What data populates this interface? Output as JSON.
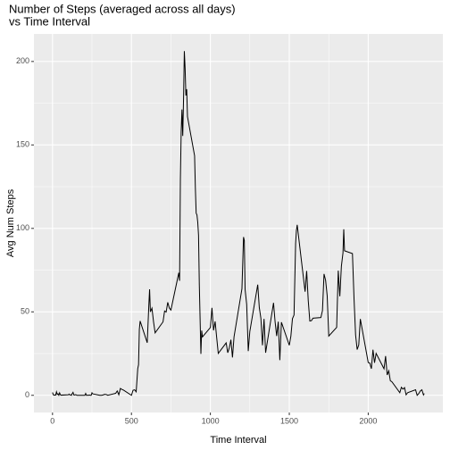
{
  "chart_data": {
    "type": "line",
    "title": [
      "Number of Steps (averaged across all days)",
      "vs Time Interval"
    ],
    "x_label": "Time Interval",
    "y_label": "Avg Num Steps",
    "color": "#000000",
    "grid": true,
    "xlim": [
      -117.75,
      2472.75
    ],
    "xticks": [
      0,
      500,
      1000,
      1500,
      2000
    ],
    "ylim": [
      -10.3,
      216.5
    ],
    "yticks": [
      0,
      50,
      100,
      150,
      200
    ],
    "x": [
      0,
      5,
      10,
      15,
      20,
      25,
      30,
      35,
      40,
      45,
      50,
      55,
      100,
      105,
      110,
      115,
      120,
      125,
      130,
      135,
      140,
      145,
      150,
      155,
      200,
      205,
      210,
      215,
      220,
      225,
      230,
      235,
      240,
      245,
      250,
      255,
      300,
      310,
      320,
      330,
      340,
      350,
      400,
      410,
      420,
      430,
      440,
      450,
      500,
      510,
      520,
      530,
      540,
      545,
      550,
      555,
      600,
      610,
      615,
      620,
      630,
      640,
      650,
      700,
      710,
      720,
      730,
      740,
      750,
      800,
      805,
      810,
      815,
      820,
      825,
      830,
      835,
      840,
      845,
      850,
      855,
      900,
      905,
      910,
      915,
      920,
      925,
      930,
      935,
      940,
      945,
      950,
      1000,
      1010,
      1020,
      1030,
      1040,
      1050,
      1100,
      1110,
      1120,
      1130,
      1140,
      1150,
      1200,
      1210,
      1215,
      1220,
      1230,
      1240,
      1250,
      1300,
      1310,
      1320,
      1330,
      1340,
      1350,
      1400,
      1410,
      1420,
      1430,
      1440,
      1450,
      1500,
      1510,
      1520,
      1530,
      1540,
      1545,
      1550,
      1600,
      1610,
      1620,
      1630,
      1640,
      1650,
      1700,
      1710,
      1720,
      1730,
      1740,
      1750,
      1800,
      1810,
      1820,
      1830,
      1840,
      1845,
      1850,
      1900,
      1910,
      1920,
      1930,
      1940,
      1950,
      2000,
      2010,
      2020,
      2030,
      2040,
      2050,
      2100,
      2110,
      2120,
      2130,
      2140,
      2150,
      2200,
      2210,
      2220,
      2230,
      2240,
      2250,
      2300,
      2310,
      2320,
      2330,
      2340,
      2350,
      2355
    ],
    "values": [
      1.7,
      0.3,
      0.1,
      0.2,
      0.1,
      2.1,
      0.5,
      0.9,
      0,
      1.5,
      0.3,
      0.1,
      0.3,
      0.7,
      0.2,
      0.3,
      0,
      1.1,
      1.8,
      0.2,
      0.2,
      0.4,
      0.3,
      0,
      0,
      0,
      1.1,
      0,
      0,
      0.1,
      0,
      0.2,
      0,
      0,
      1.5,
      0.9,
      0,
      0,
      0.2,
      0.6,
      0.5,
      0,
      1.2,
      2.6,
      0.3,
      4.1,
      3.5,
      3.1,
      0,
      3,
      3.3,
      2.1,
      16,
      18.3,
      39.5,
      44.5,
      31.5,
      53.8,
      63.5,
      50,
      52.2,
      44,
      37.4,
      44,
      50.5,
      49.9,
      55.7,
      52.3,
      51.1,
      73.4,
      68.6,
      129.4,
      157.5,
      171.2,
      155.4,
      177.3,
      206.2,
      195.9,
      179.6,
      183.4,
      167,
      143.5,
      124,
      109.1,
      108.1,
      103.7,
      95.9,
      66.2,
      45.2,
      24.8,
      38.8,
      35,
      40.6,
      52.4,
      38.9,
      44.3,
      34.6,
      25.1,
      31.4,
      25.5,
      28.4,
      33.3,
      22.7,
      35.1,
      63.9,
      94.8,
      92.8,
      63.4,
      54.5,
      26.5,
      38.3,
      66.3,
      52.5,
      46.2,
      30,
      45.8,
      25.5,
      55.4,
      44,
      35.5,
      44.1,
      21.1,
      43.8,
      30,
      35.5,
      45.9,
      48.1,
      91,
      98.7,
      102.1,
      62.1,
      74.5,
      56.8,
      44.5,
      44.7,
      46.2,
      46.6,
      50.7,
      72.7,
      68.9,
      59.7,
      35.5,
      40.7,
      74.7,
      59.3,
      77.4,
      85.3,
      99.5,
      86.6,
      84.9,
      58,
      36.1,
      27.4,
      30.2,
      45.7,
      19.6,
      19.3,
      15.9,
      27.3,
      19.5,
      25.1,
      15.9,
      23.5,
      12.2,
      14.7,
      8.7,
      8.1,
      1.6,
      4.8,
      3.7,
      4.6,
      0.3,
      1.6,
      3.3,
      0,
      1,
      2.6,
      3.3,
      0.2,
      1.1
    ]
  }
}
